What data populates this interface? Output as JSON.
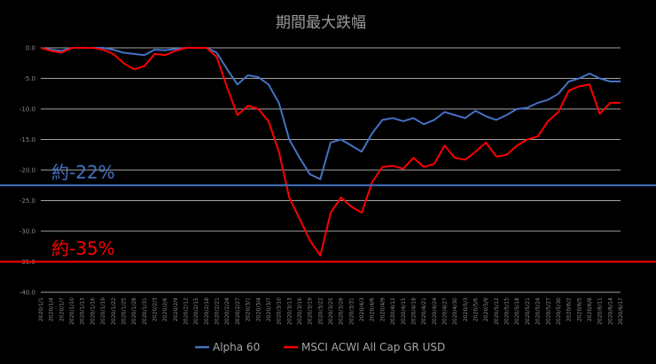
{
  "chart_data": {
    "type": "line",
    "title": "期間最大跌幅",
    "ylim": [
      -40,
      0
    ],
    "yticks": [
      "0.0",
      "-5.0",
      "-10.0",
      "-15.0",
      "-20.0",
      "-25.0",
      "-30.0",
      "-35.0",
      "-40.0"
    ],
    "ytick_values": [
      0,
      -5,
      -10,
      -15,
      -20,
      -25,
      -30,
      -35,
      -40
    ],
    "grid": true,
    "legend_position": "bottom",
    "x": [
      "2020/1/1",
      "2020/1/4",
      "2020/1/7",
      "2020/1/10",
      "2020/1/13",
      "2020/1/16",
      "2020/1/19",
      "2020/1/22",
      "2020/1/25",
      "2020/1/28",
      "2020/1/31",
      "2020/2/3",
      "2020/2/6",
      "2020/2/9",
      "2020/2/12",
      "2020/2/15",
      "2020/2/18",
      "2020/2/21",
      "2020/2/24",
      "2020/2/27",
      "2020/3/1",
      "2020/3/4",
      "2020/3/7",
      "2020/3/10",
      "2020/3/13",
      "2020/3/16",
      "2020/3/19",
      "2020/3/22",
      "2020/3/25",
      "2020/3/28",
      "2020/3/31",
      "2020/4/3",
      "2020/4/6",
      "2020/4/9",
      "2020/4/12",
      "2020/4/15",
      "2020/4/18",
      "2020/4/21",
      "2020/4/24",
      "2020/4/27",
      "2020/4/30",
      "2020/5/3",
      "2020/5/6",
      "2020/5/9",
      "2020/5/12",
      "2020/5/15",
      "2020/5/18",
      "2020/5/21",
      "2020/5/24",
      "2020/5/27",
      "2020/5/30",
      "2020/6/2",
      "2020/6/5",
      "2020/6/8",
      "2020/6/11",
      "2020/6/14",
      "2020/6/17"
    ],
    "series": [
      {
        "name": "Alpha 60",
        "color": "#4472c4",
        "values": [
          0,
          -0.3,
          -0.5,
          0,
          0,
          0,
          0,
          -0.3,
          -0.8,
          -1.0,
          -1.2,
          -0.3,
          -0.4,
          -0.2,
          0,
          0,
          0,
          -0.8,
          -3.5,
          -6.0,
          -4.5,
          -4.8,
          -6.0,
          -9.0,
          -15.0,
          -18.0,
          -20.7,
          -21.5,
          -15.5,
          -15.0,
          -16.0,
          -17.0,
          -14.0,
          -11.8,
          -11.5,
          -12.0,
          -11.5,
          -12.5,
          -11.8,
          -10.5,
          -11.0,
          -11.5,
          -10.3,
          -11.2,
          -11.8,
          -11.0,
          -10.0,
          -9.8,
          -9.0,
          -8.5,
          -7.5,
          -5.5,
          -5.0,
          -4.2,
          -5.0,
          -5.5,
          -5.5
        ]
      },
      {
        "name": "MSCI ACWI All Cap GR USD",
        "color": "#ff0000",
        "values": [
          0,
          -0.5,
          -0.8,
          0,
          0,
          0,
          -0.3,
          -1.0,
          -2.5,
          -3.5,
          -3.0,
          -1.0,
          -1.2,
          -0.5,
          0,
          0,
          0,
          -1.5,
          -6.5,
          -11.0,
          -9.5,
          -10.0,
          -12.0,
          -17.0,
          -24.5,
          -28.0,
          -31.5,
          -34.0,
          -27.0,
          -24.5,
          -26.0,
          -27.0,
          -22.0,
          -19.5,
          -19.3,
          -19.8,
          -18.0,
          -19.5,
          -19.0,
          -16.0,
          -18.0,
          -18.3,
          -17.0,
          -15.5,
          -17.8,
          -17.5,
          -16.0,
          -15.0,
          -14.5,
          -12.0,
          -10.5,
          -7.0,
          -6.3,
          -6.0,
          -10.8,
          -9.0,
          -9.0
        ]
      }
    ],
    "annotations": [
      {
        "text": "約-22%",
        "value": -22.5,
        "color": "#4472c4"
      },
      {
        "text": "約-35%",
        "value": -35.0,
        "color": "#ff0000"
      }
    ]
  }
}
